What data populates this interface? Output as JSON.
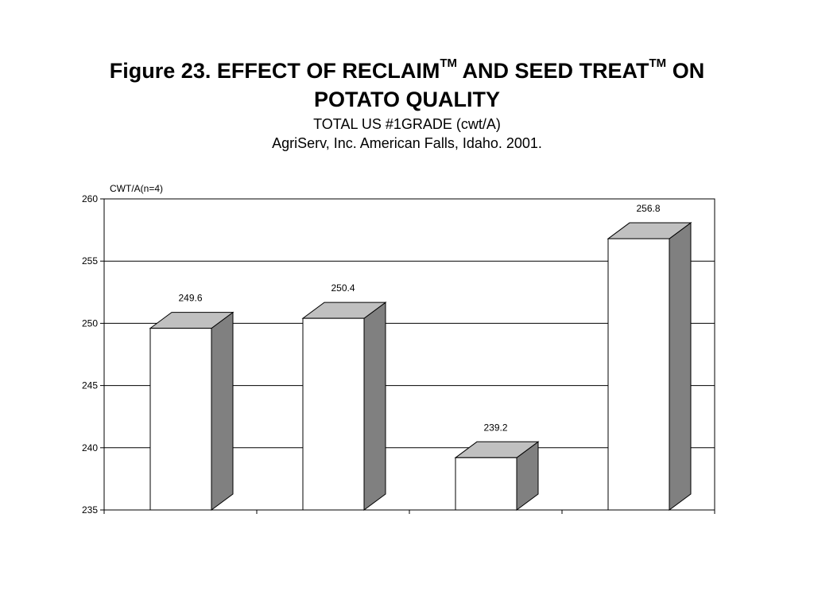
{
  "title": {
    "prefix": "Figure 23. EFFECT OF RECLAIM",
    "tm1": "TM",
    "middle": " AND SEED TREAT",
    "tm2": "TM",
    "suffix": " ON",
    "line2": "POTATO QUALITY"
  },
  "subtitle": {
    "line1": "TOTAL US #1GRADE (cwt/A)",
    "line2": "AgriServ, Inc.  American Falls, Idaho. 2001."
  },
  "colors": {
    "bar_front": "#ffffff",
    "bar_top": "#c0c0c0",
    "bar_side": "#808080",
    "gridline": "#000000"
  },
  "chart_data": {
    "type": "bar",
    "style": "3d-column",
    "ylabel": "CWT/A(n=4)",
    "xlabel": "",
    "categories": [
      "",
      "",
      "",
      ""
    ],
    "values": [
      249.6,
      250.4,
      239.2,
      256.8
    ],
    "value_labels": [
      "249.6",
      "250.4",
      "239.2",
      "256.8"
    ],
    "ylim": [
      235,
      260
    ],
    "yticks": [
      235,
      240,
      245,
      250,
      255,
      260
    ],
    "ytick_labels": [
      "235",
      "240",
      "245",
      "250",
      "255",
      "260"
    ],
    "grid": true,
    "legend": "none"
  }
}
